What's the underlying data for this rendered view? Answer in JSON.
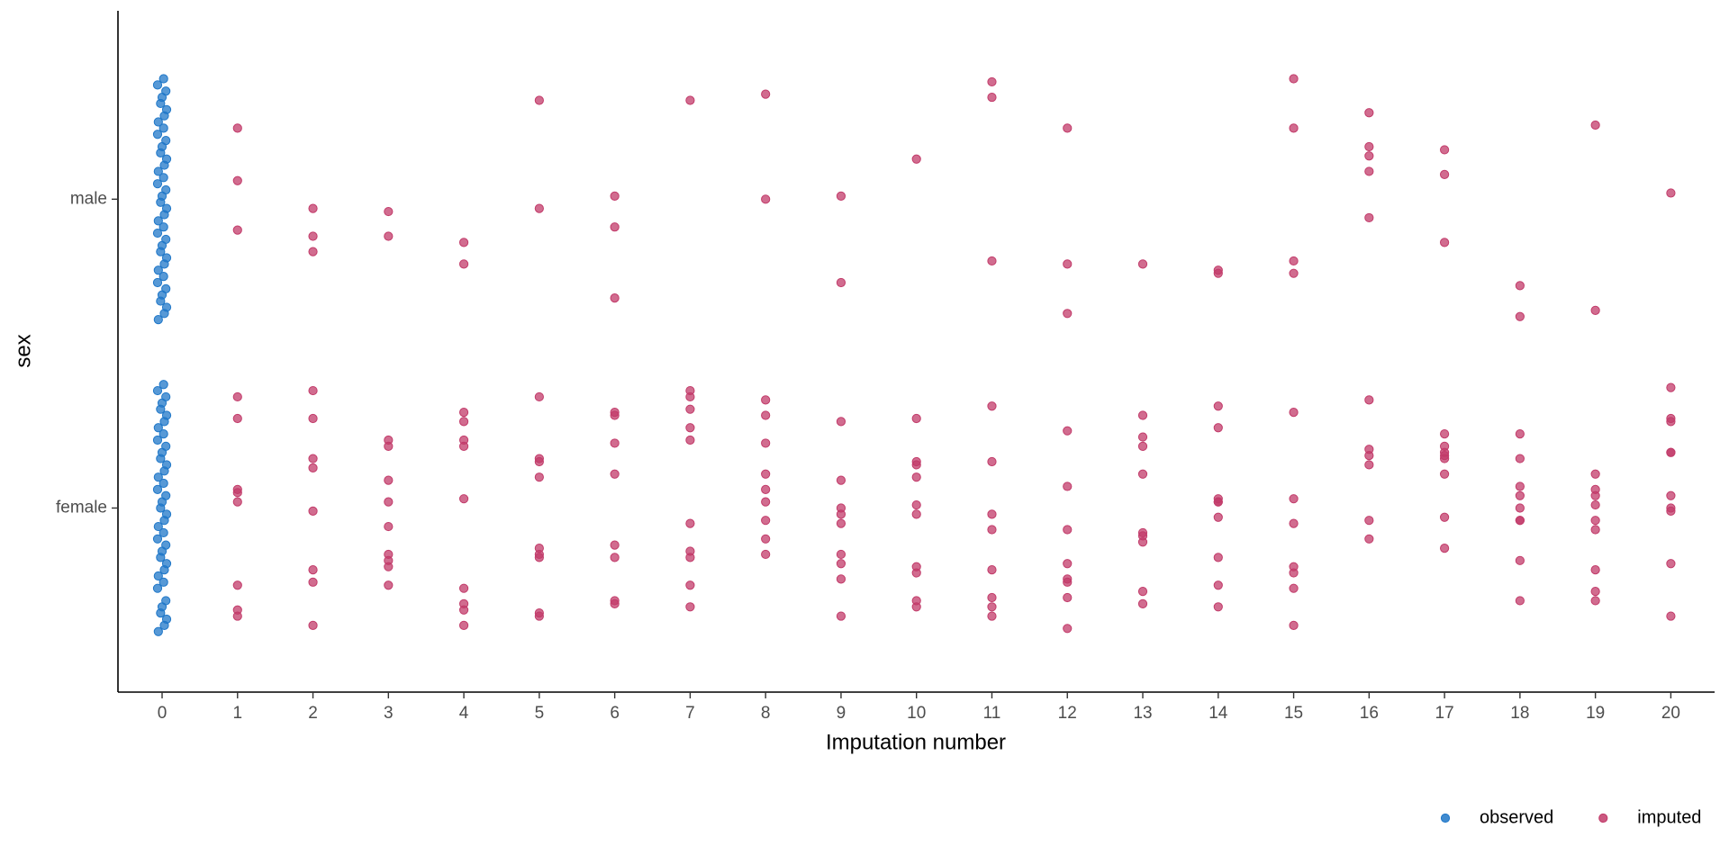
{
  "chart_data": {
    "type": "scatter",
    "x_label": "Imputation number",
    "y_label": "sex",
    "xlim": [
      -0.585,
      20.58
    ],
    "ylim": [
      0.404,
      2.61
    ],
    "xticks": [
      0,
      1,
      2,
      3,
      4,
      5,
      6,
      7,
      8,
      9,
      10,
      11,
      12,
      13,
      14,
      15,
      16,
      17,
      18,
      19,
      20
    ],
    "yticks": [
      {
        "value": 1,
        "label": "female"
      },
      {
        "value": 2,
        "label": "male"
      }
    ],
    "legend_position": "bottom-right",
    "series": [
      {
        "name": "observed",
        "color": "#1f77c8",
        "x": [
          -0.05,
          0.03,
          0.06,
          -0.02,
          0.0,
          0.05,
          -0.06,
          0.02,
          -0.05,
          0.03,
          0.06,
          -0.02,
          0.0,
          0.05,
          -0.06,
          0.02,
          -0.05,
          0.03,
          0.06,
          -0.02,
          0.0,
          0.05,
          -0.06,
          0.02,
          -0.05,
          0.03,
          0.06,
          -0.02,
          0.0,
          0.05,
          -0.06,
          0.02,
          -0.05,
          0.03,
          0.06,
          -0.02,
          0.0,
          0.05,
          -0.06,
          0.02,
          -0.05,
          0.03,
          0.06,
          -0.02,
          0.0,
          0.05,
          -0.06,
          0.02,
          -0.05,
          0.03,
          0.06,
          -0.02,
          0.0,
          0.05,
          -0.06,
          0.02,
          -0.05,
          0.03,
          0.06,
          -0.02,
          0.0,
          0.05,
          -0.06,
          0.02,
          -0.05,
          0.03,
          0.06,
          -0.02,
          0.0,
          0.05,
          -0.06,
          0.02,
          -0.05,
          0.03,
          0.06,
          -0.02,
          0.0,
          0.05,
          -0.06,
          0.02
        ],
        "y": [
          1.61,
          1.63,
          1.65,
          1.67,
          1.69,
          1.71,
          1.73,
          1.75,
          1.77,
          1.79,
          1.81,
          1.83,
          1.85,
          1.87,
          1.89,
          1.91,
          1.93,
          1.95,
          1.97,
          1.99,
          2.01,
          2.03,
          2.05,
          2.07,
          2.09,
          2.11,
          2.13,
          2.15,
          2.17,
          2.19,
          2.21,
          2.23,
          2.25,
          2.27,
          2.29,
          2.31,
          2.33,
          2.35,
          2.37,
          2.39,
          0.6,
          0.62,
          0.64,
          0.66,
          0.68,
          0.7,
          0.74,
          0.76,
          0.78,
          0.8,
          0.82,
          0.84,
          0.86,
          0.88,
          0.9,
          0.92,
          0.94,
          0.96,
          0.98,
          1.0,
          1.02,
          1.04,
          1.06,
          1.08,
          1.1,
          1.12,
          1.14,
          1.16,
          1.18,
          1.2,
          1.22,
          1.24,
          1.26,
          1.28,
          1.3,
          1.32,
          1.34,
          1.36,
          1.38,
          1.4
        ]
      },
      {
        "name": "imputed",
        "color": "#c23b6a",
        "x": [
          1,
          1,
          1,
          1,
          1,
          1,
          1,
          1,
          1,
          1,
          1,
          2,
          2,
          2,
          2,
          2,
          2,
          2,
          2,
          2,
          2,
          2,
          3,
          3,
          3,
          3,
          3,
          3,
          3,
          3,
          3,
          3,
          3,
          4,
          4,
          4,
          4,
          4,
          4,
          4,
          4,
          4,
          4,
          4,
          5,
          5,
          5,
          5,
          5,
          5,
          5,
          5,
          5,
          5,
          5,
          6,
          6,
          6,
          6,
          6,
          6,
          6,
          6,
          6,
          6,
          6,
          7,
          7,
          7,
          7,
          7,
          7,
          7,
          7,
          7,
          7,
          7,
          8,
          8,
          8,
          8,
          8,
          8,
          8,
          8,
          8,
          8,
          8,
          9,
          9,
          9,
          9,
          9,
          9,
          9,
          9,
          9,
          9,
          9,
          10,
          10,
          10,
          10,
          10,
          10,
          10,
          10,
          10,
          10,
          10,
          11,
          11,
          11,
          11,
          11,
          11,
          11,
          11,
          11,
          11,
          11,
          12,
          12,
          12,
          12,
          12,
          12,
          12,
          12,
          12,
          12,
          12,
          13,
          13,
          13,
          13,
          13,
          13,
          13,
          13,
          13,
          13,
          14,
          14,
          14,
          14,
          14,
          14,
          14,
          14,
          14,
          14,
          14,
          15,
          15,
          15,
          15,
          15,
          15,
          15,
          15,
          15,
          15,
          15,
          16,
          16,
          16,
          16,
          16,
          16,
          16,
          16,
          16,
          16,
          16,
          17,
          17,
          17,
          17,
          17,
          17,
          17,
          17,
          17,
          17,
          17,
          18,
          18,
          18,
          18,
          18,
          18,
          18,
          18,
          18,
          18,
          18,
          19,
          19,
          19,
          19,
          19,
          19,
          19,
          19,
          19,
          19,
          19,
          20,
          20,
          20,
          20,
          20,
          20,
          20,
          20,
          20,
          20,
          20
        ],
        "y": [
          2.23,
          2.06,
          1.9,
          1.36,
          1.29,
          1.06,
          1.05,
          1.02,
          0.75,
          0.67,
          0.65,
          1.97,
          1.88,
          1.83,
          1.38,
          1.29,
          1.16,
          1.13,
          0.99,
          0.8,
          0.76,
          0.62,
          1.96,
          1.88,
          1.22,
          1.2,
          1.09,
          1.02,
          0.94,
          0.85,
          0.83,
          0.81,
          0.75,
          1.86,
          1.79,
          1.31,
          1.28,
          1.22,
          1.2,
          1.03,
          0.74,
          0.69,
          0.67,
          0.62,
          2.32,
          1.97,
          1.36,
          1.16,
          1.15,
          1.1,
          0.87,
          0.85,
          0.84,
          0.66,
          0.65,
          2.01,
          1.91,
          1.68,
          1.3,
          1.31,
          1.21,
          1.11,
          0.88,
          0.84,
          0.7,
          0.69,
          2.32,
          1.38,
          1.36,
          1.32,
          1.26,
          1.22,
          0.95,
          0.86,
          0.84,
          0.75,
          0.68,
          2.34,
          2.0,
          1.35,
          1.3,
          1.21,
          1.11,
          1.06,
          1.02,
          0.96,
          0.9,
          0.85,
          2.01,
          1.73,
          1.28,
          1.09,
          1.0,
          0.98,
          0.95,
          0.85,
          0.82,
          0.77,
          0.65,
          2.13,
          1.29,
          1.15,
          1.14,
          1.1,
          1.01,
          0.98,
          0.81,
          0.79,
          0.7,
          0.68,
          2.38,
          2.33,
          1.8,
          1.33,
          1.15,
          0.98,
          0.93,
          0.8,
          0.71,
          0.68,
          0.65,
          2.23,
          1.79,
          1.63,
          1.25,
          1.07,
          0.93,
          0.82,
          0.77,
          0.76,
          0.71,
          0.61,
          1.79,
          1.3,
          1.23,
          1.2,
          1.11,
          0.92,
          0.91,
          0.89,
          0.73,
          0.69,
          1.77,
          1.76,
          1.33,
          1.26,
          1.03,
          1.02,
          1.02,
          0.97,
          0.84,
          0.75,
          0.68,
          2.39,
          2.23,
          1.8,
          1.76,
          1.31,
          1.03,
          0.95,
          0.81,
          0.79,
          0.74,
          0.62,
          2.28,
          2.17,
          2.14,
          2.09,
          1.94,
          1.35,
          1.19,
          1.17,
          1.14,
          0.96,
          0.9,
          2.16,
          2.08,
          1.86,
          1.24,
          1.2,
          1.18,
          1.17,
          1.16,
          1.11,
          0.97,
          0.87,
          1.72,
          1.62,
          1.24,
          1.16,
          1.07,
          1.04,
          1.0,
          0.96,
          0.96,
          0.83,
          0.7,
          2.24,
          1.64,
          1.11,
          1.06,
          1.04,
          1.01,
          0.96,
          0.93,
          0.8,
          0.73,
          0.7,
          2.02,
          1.39,
          1.29,
          1.28,
          1.18,
          1.18,
          1.04,
          1.0,
          0.99,
          0.82,
          0.65
        ]
      }
    ]
  }
}
